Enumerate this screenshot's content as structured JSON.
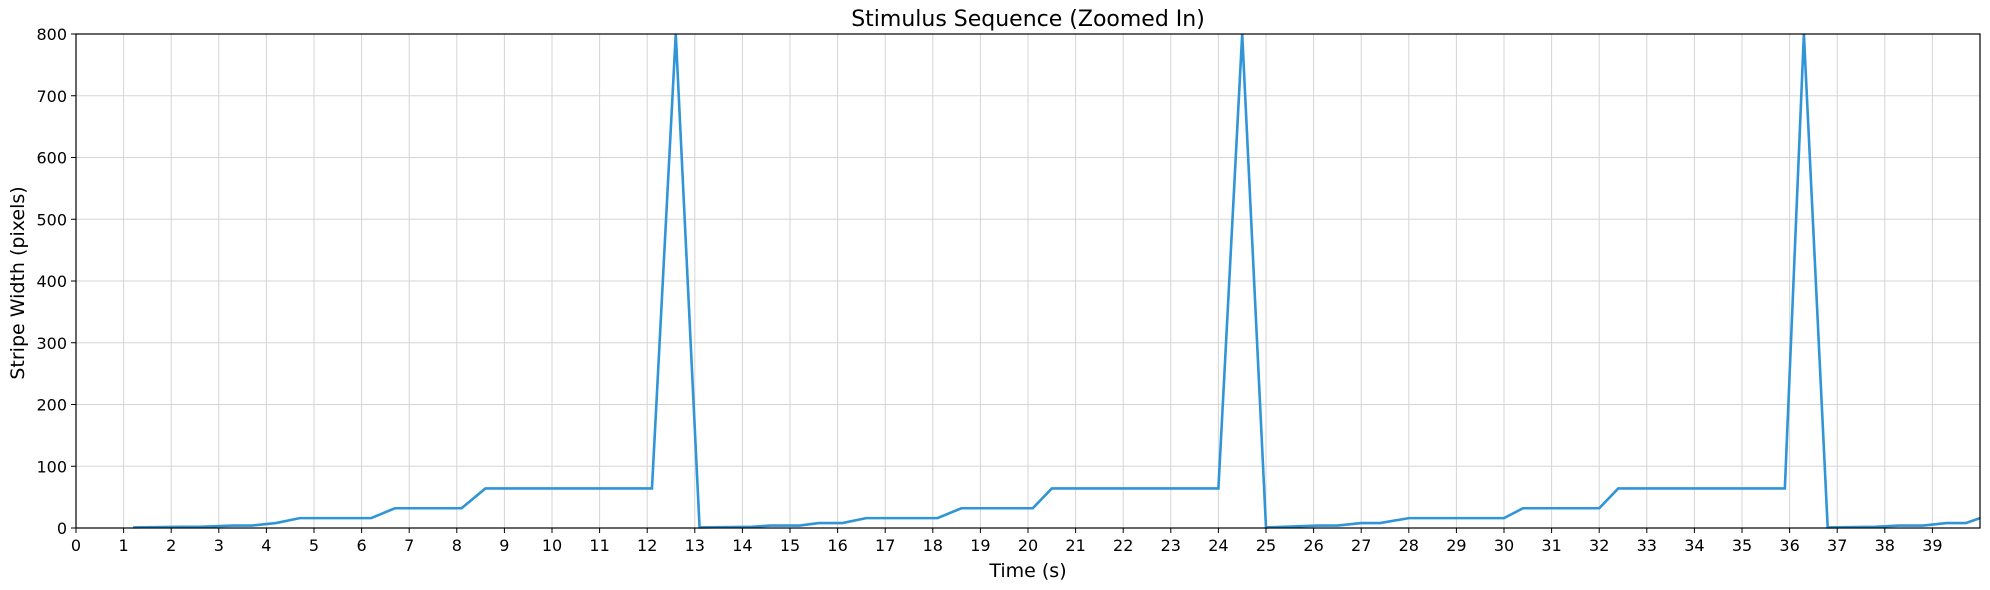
{
  "chart_data": {
    "type": "line",
    "title": "Stimulus Sequence (Zoomed In)",
    "xlabel": "Time (s)",
    "ylabel": "Stripe Width (pixels)",
    "xlim": [
      0,
      40
    ],
    "ylim": [
      0,
      800
    ],
    "xticks": [
      0,
      1,
      2,
      3,
      4,
      5,
      6,
      7,
      8,
      9,
      10,
      11,
      12,
      13,
      14,
      15,
      16,
      17,
      18,
      19,
      20,
      21,
      22,
      23,
      24,
      25,
      26,
      27,
      28,
      29,
      30,
      31,
      32,
      33,
      34,
      35,
      36,
      37,
      38,
      39
    ],
    "yticks": [
      0,
      100,
      200,
      300,
      400,
      500,
      600,
      700,
      800
    ],
    "grid": true,
    "color": "#2f95d7",
    "series": [
      {
        "x": [
          1.2,
          2.2,
          2.6,
          3.3,
          3.7,
          4.2,
          4.7,
          6.2,
          6.7,
          8.1,
          8.6,
          12.1,
          12.6,
          13.1,
          14.2,
          14.6,
          15.2,
          15.6,
          16.1,
          16.6,
          18.1,
          18.6,
          20.1,
          20.5,
          24.0,
          24.5,
          25.0,
          26.1,
          26.5,
          27.0,
          27.4,
          28.0,
          28.4,
          30.0,
          30.4,
          32.0,
          32.4,
          35.9,
          36.3,
          36.8,
          37.8,
          38.3,
          38.8,
          39.3,
          39.7,
          40.0
        ],
        "y": [
          1,
          2,
          2,
          4,
          4,
          8,
          16,
          16,
          32,
          32,
          64,
          64,
          800,
          1,
          2,
          4,
          4,
          8,
          8,
          16,
          16,
          32,
          32,
          64,
          64,
          800,
          1,
          4,
          4,
          8,
          8,
          16,
          16,
          16,
          32,
          32,
          64,
          64,
          800,
          1,
          2,
          4,
          4,
          8,
          8,
          16
        ]
      }
    ]
  }
}
